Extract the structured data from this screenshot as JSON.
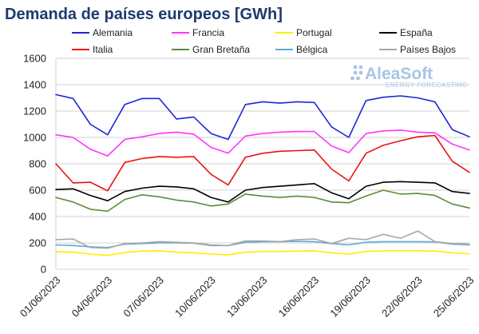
{
  "chart_data": {
    "type": "line",
    "title": "Demanda de países europeos [GWh]",
    "xlabel": "",
    "ylabel": "",
    "ylim": [
      0,
      1600
    ],
    "yticks": [
      0,
      200,
      400,
      600,
      800,
      1000,
      1200,
      1400,
      1600
    ],
    "ytick_labels": [
      "0",
      "200",
      "400",
      "600",
      "800",
      "1000",
      "1200",
      "1400",
      "1600"
    ],
    "grid": "horizontal",
    "legend_position": "top",
    "x_dates": [
      "01/06/2023",
      "02/06/2023",
      "03/06/2023",
      "04/06/2023",
      "05/06/2023",
      "06/06/2023",
      "07/06/2023",
      "08/06/2023",
      "09/06/2023",
      "10/06/2023",
      "11/06/2023",
      "12/06/2023",
      "13/06/2023",
      "14/06/2023",
      "15/06/2023",
      "16/06/2023",
      "17/06/2023",
      "18/06/2023",
      "19/06/2023",
      "20/06/2023",
      "21/06/2023",
      "22/06/2023",
      "23/06/2023",
      "24/06/2023",
      "25/06/2023"
    ],
    "xtick_labels": [
      "01/06/2023",
      "04/06/2023",
      "07/06/2023",
      "10/06/2023",
      "13/06/2023",
      "16/06/2023",
      "19/06/2023",
      "22/06/2023",
      "25/06/2023"
    ],
    "xtick_indices": [
      0,
      3,
      6,
      9,
      12,
      15,
      18,
      21,
      24
    ],
    "series": [
      {
        "name": "Alemania",
        "color": "#1f25d6",
        "values": [
          1325,
          1295,
          1100,
          1020,
          1250,
          1295,
          1295,
          1140,
          1155,
          1030,
          985,
          1250,
          1270,
          1260,
          1270,
          1265,
          1080,
          1000,
          1280,
          1305,
          1315,
          1300,
          1270,
          1060,
          1005
        ]
      },
      {
        "name": "Francia",
        "color": "#ff33ff",
        "values": [
          1020,
          1000,
          910,
          860,
          985,
          1005,
          1030,
          1040,
          1025,
          925,
          880,
          1010,
          1030,
          1040,
          1045,
          1045,
          935,
          885,
          1030,
          1050,
          1055,
          1040,
          1035,
          950,
          905
        ]
      },
      {
        "name": "Portugal",
        "color": "#ffee00",
        "values": [
          133,
          130,
          115,
          105,
          128,
          138,
          140,
          130,
          125,
          115,
          110,
          130,
          135,
          135,
          138,
          140,
          125,
          115,
          135,
          140,
          142,
          140,
          138,
          125,
          118
        ]
      },
      {
        "name": "España",
        "color": "#000000",
        "values": [
          605,
          610,
          560,
          520,
          590,
          615,
          630,
          625,
          610,
          545,
          510,
          600,
          620,
          630,
          640,
          650,
          580,
          535,
          630,
          660,
          665,
          660,
          655,
          590,
          575
        ]
      },
      {
        "name": "Italia",
        "color": "#ee1111",
        "values": [
          800,
          655,
          660,
          595,
          810,
          840,
          855,
          850,
          855,
          720,
          640,
          850,
          880,
          895,
          900,
          905,
          760,
          670,
          880,
          940,
          975,
          1005,
          1015,
          820,
          735
        ]
      },
      {
        "name": "Gran Bretaña",
        "color": "#5a8c3a",
        "values": [
          545,
          510,
          455,
          440,
          530,
          565,
          550,
          525,
          510,
          480,
          495,
          570,
          555,
          545,
          555,
          545,
          510,
          505,
          555,
          600,
          570,
          575,
          560,
          495,
          465
        ]
      },
      {
        "name": "Bélgica",
        "color": "#5fa9d6",
        "values": [
          185,
          180,
          170,
          165,
          190,
          195,
          200,
          200,
          198,
          180,
          180,
          205,
          210,
          210,
          212,
          210,
          195,
          185,
          205,
          210,
          210,
          210,
          208,
          190,
          185
        ]
      },
      {
        "name": "Países Bajos",
        "color": "#a8a8a8",
        "values": [
          225,
          230,
          165,
          160,
          195,
          200,
          210,
          205,
          200,
          185,
          180,
          215,
          215,
          210,
          225,
          230,
          195,
          235,
          225,
          265,
          235,
          290,
          210,
          195,
          190
        ]
      }
    ]
  },
  "brand": {
    "name": "AleaSoft",
    "subtitle": "ENERGY FORECASTING"
  }
}
